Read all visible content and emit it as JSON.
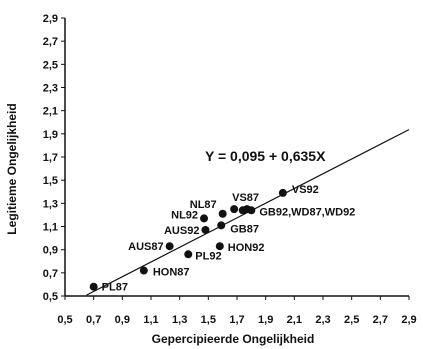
{
  "chart_data": {
    "type": "scatter",
    "title": "",
    "xlabel": "Gepercipieerde Ongelijkheid",
    "ylabel": "Legitieme Ongelijkheid",
    "xlim": [
      0.5,
      2.9
    ],
    "ylim": [
      0.5,
      2.9
    ],
    "x_ticks": [
      "0,5",
      "0,7",
      "0,9",
      "1,1",
      "1,3",
      "1,5",
      "1,7",
      "1,9",
      "2,1",
      "2,3",
      "2,5",
      "2,7",
      "2,9"
    ],
    "y_ticks": [
      "0,5",
      "0,7",
      "0,9",
      "1,1",
      "1,3",
      "1,5",
      "1,7",
      "1,9",
      "2,1",
      "2,3",
      "2,5",
      "2,7",
      "2,9"
    ],
    "grid": false,
    "points": [
      {
        "label": "PL87",
        "x": 0.7,
        "y": 0.58
      },
      {
        "label": "HON87",
        "x": 1.05,
        "y": 0.72
      },
      {
        "label": "AUS87",
        "x": 1.23,
        "y": 0.93
      },
      {
        "label": "PL92",
        "x": 1.36,
        "y": 0.86
      },
      {
        "label": "AUS92",
        "x": 1.48,
        "y": 1.07
      },
      {
        "label": "NL92",
        "x": 1.47,
        "y": 1.17
      },
      {
        "label": "HON92",
        "x": 1.58,
        "y": 0.93
      },
      {
        "label": "NL87",
        "x": 1.6,
        "y": 1.21
      },
      {
        "label": "GB87",
        "x": 1.59,
        "y": 1.11
      },
      {
        "label": "VS87",
        "x": 1.68,
        "y": 1.25
      },
      {
        "label": "GB92",
        "x": 1.74,
        "y": 1.24
      },
      {
        "label": "WD87",
        "x": 1.77,
        "y": 1.25
      },
      {
        "label": "WD92",
        "x": 1.8,
        "y": 1.24
      },
      {
        "label": "VS92",
        "x": 2.02,
        "y": 1.39
      }
    ],
    "regression": {
      "intercept": 0.095,
      "slope": 0.635,
      "equation": "Y = 0,095 + 0,635X"
    },
    "label_texts": {
      "PL87": "PL87",
      "HON87": "HON87",
      "AUS87": "AUS87",
      "PL92": "PL92",
      "AUS92": "AUS92",
      "NL92": "NL92",
      "HON92": "HON92",
      "NL87": "NL87",
      "GB87": "GB87",
      "VS87": "VS87",
      "GB92_WD87_WD92": "GB92,WD87,WD92",
      "VS92": "VS92"
    }
  }
}
